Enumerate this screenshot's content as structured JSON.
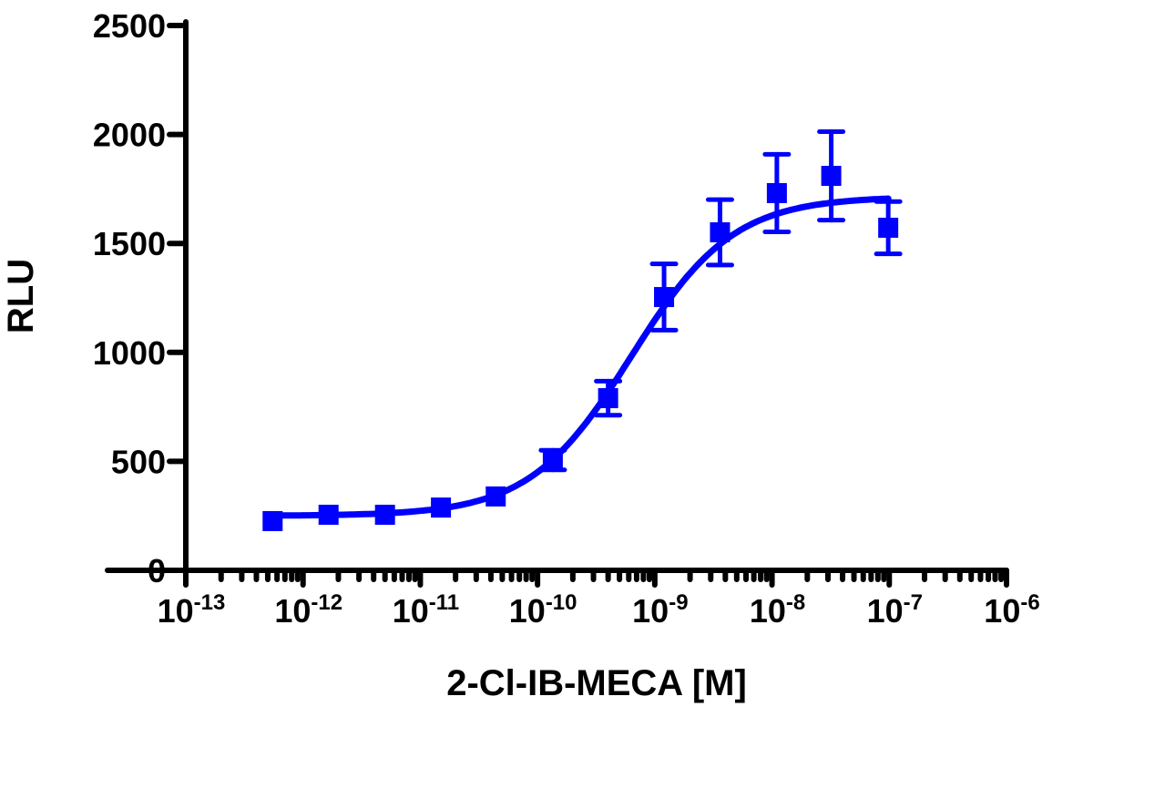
{
  "chart_data": {
    "type": "scatter",
    "title": "",
    "xlabel": "2-Cl-IB-MECA [M]",
    "ylabel": "RLU",
    "x_scale": "log",
    "xlim": [
      1e-13,
      1e-06
    ],
    "ylim": [
      0,
      2500
    ],
    "grid": false,
    "y_ticks": [
      0,
      500,
      1000,
      1500,
      2000,
      2500
    ],
    "y_tick_labels": [
      "0",
      "500",
      "1000",
      "1500",
      "2000",
      "2500"
    ],
    "x_ticks": [
      1e-13,
      1e-12,
      1e-11,
      1e-10,
      1e-09,
      1e-08,
      1e-07,
      1e-06
    ],
    "x_tick_labels": [
      {
        "base": "10",
        "exp": "-13"
      },
      {
        "base": "10",
        "exp": "-12"
      },
      {
        "base": "10",
        "exp": "-11"
      },
      {
        "base": "10",
        "exp": "-10"
      },
      {
        "base": "10",
        "exp": "-9"
      },
      {
        "base": "10",
        "exp": "-8"
      },
      {
        "base": "10",
        "exp": "-7"
      },
      {
        "base": "10",
        "exp": "-6"
      }
    ],
    "series": [
      {
        "color": "#0000ff",
        "marker": "square",
        "x": [
          5.5e-13,
          1.65e-12,
          5e-12,
          1.5e-11,
          4.4e-11,
          1.35e-10,
          4e-10,
          1.2e-09,
          3.6e-09,
          1.1e-08,
          3.2e-08,
          9.8e-08
        ],
        "y": [
          226,
          255,
          255,
          288,
          339,
          506,
          790,
          1254,
          1551,
          1731,
          1810,
          1572
        ],
        "error": [
          0,
          0,
          0,
          0,
          0,
          45,
          78,
          152,
          150,
          178,
          203,
          120
        ]
      }
    ],
    "fit": {
      "type": "sigmoidal dose-response",
      "color": "#0000ff",
      "bottom": 250,
      "top": 1715,
      "log_ec50": -9.2,
      "hill_slope": 1.0,
      "x_range": [
        5.5e-13,
        9.8e-08
      ]
    }
  }
}
